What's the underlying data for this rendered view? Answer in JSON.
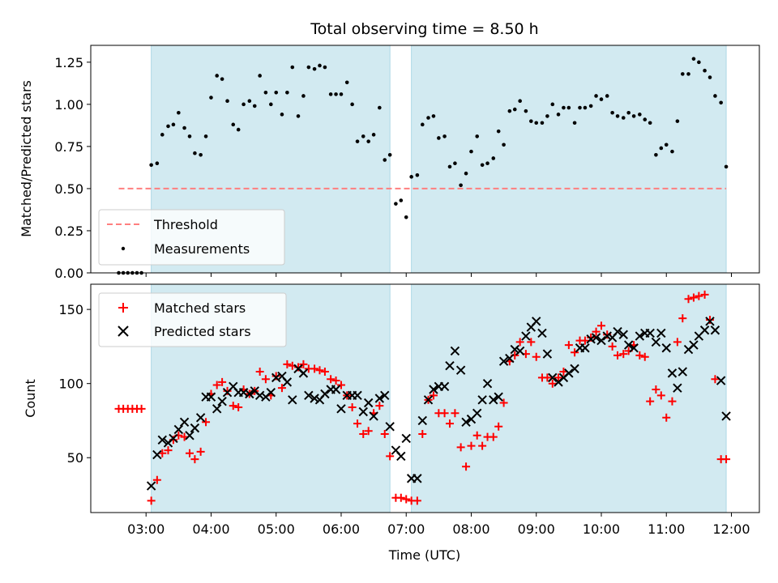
{
  "chart_data": {
    "type": "scatter",
    "title": "Total observing time = 8.50 h",
    "xlabel": "Time (UTC)",
    "x_tick_labels": [
      "03:00",
      "04:00",
      "05:00",
      "06:00",
      "07:00",
      "08:00",
      "09:00",
      "10:00",
      "11:00",
      "12:00"
    ],
    "x_tick_hours": [
      3,
      4,
      5,
      6,
      7,
      8,
      9,
      10,
      11,
      12
    ],
    "xlim_hours": [
      2.15,
      12.43
    ],
    "shaded_intervals_hours": [
      [
        3.08,
        6.75
      ],
      [
        7.08,
        11.92
      ]
    ],
    "colors": {
      "shade": "#add8e6",
      "threshold": "#ff7f7f",
      "matched": "#ff0000",
      "predicted": "#000000",
      "measurements": "#000000"
    },
    "panels": [
      {
        "ylabel": "Matched/Predicted stars",
        "ylim": [
          0,
          1.35
        ],
        "y_ticks": [
          0,
          0.25,
          0.5,
          0.75,
          1.0,
          1.25
        ],
        "y_tick_labels": [
          "0.00",
          "0.25",
          "0.50",
          "0.75",
          "1.00",
          "1.25"
        ],
        "legend_location": "lower-left",
        "threshold": {
          "name": "Threshold",
          "value": 0.5,
          "x_range_hours": [
            2.58,
            11.92
          ]
        },
        "series": [
          {
            "name": "Measurements",
            "marker": "dot",
            "x": [
              2.58,
              2.65,
              2.72,
              2.79,
              2.86,
              2.93,
              3.08,
              3.17,
              3.25,
              3.34,
              3.42,
              3.5,
              3.59,
              3.67,
              3.75,
              3.84,
              3.92,
              4.0,
              4.09,
              4.17,
              4.25,
              4.34,
              4.42,
              4.5,
              4.59,
              4.67,
              4.75,
              4.84,
              4.92,
              5.0,
              5.09,
              5.17,
              5.25,
              5.34,
              5.42,
              5.5,
              5.59,
              5.67,
              5.75,
              5.84,
              5.92,
              6.0,
              6.09,
              6.17,
              6.25,
              6.34,
              6.42,
              6.5,
              6.59,
              6.67,
              6.75,
              6.84,
              6.92,
              7.0,
              7.08,
              7.17,
              7.25,
              7.34,
              7.42,
              7.5,
              7.59,
              7.67,
              7.75,
              7.84,
              7.92,
              8.0,
              8.09,
              8.17,
              8.25,
              8.34,
              8.42,
              8.5,
              8.59,
              8.67,
              8.75,
              8.84,
              8.92,
              9.0,
              9.09,
              9.17,
              9.25,
              9.34,
              9.42,
              9.5,
              9.59,
              9.67,
              9.75,
              9.84,
              9.92,
              10.0,
              10.09,
              10.17,
              10.25,
              10.34,
              10.42,
              10.5,
              10.59,
              10.67,
              10.75,
              10.84,
              10.92,
              11.0,
              11.09,
              11.17,
              11.25,
              11.34,
              11.42,
              11.5,
              11.59,
              11.67,
              11.75,
              11.84,
              11.92
            ],
            "y": [
              0.0,
              0.0,
              0.0,
              0.0,
              0.0,
              0.0,
              0.64,
              0.65,
              0.82,
              0.87,
              0.88,
              0.95,
              0.86,
              0.81,
              0.71,
              0.7,
              0.81,
              1.04,
              1.17,
              1.15,
              1.02,
              0.88,
              0.85,
              1.0,
              1.02,
              0.99,
              1.17,
              1.07,
              1.0,
              1.07,
              0.94,
              1.07,
              1.22,
              0.93,
              1.05,
              1.22,
              1.21,
              1.23,
              1.22,
              1.06,
              1.06,
              1.06,
              1.13,
              1.0,
              0.78,
              0.81,
              0.78,
              0.82,
              0.98,
              0.67,
              0.7,
              0.41,
              0.43,
              0.33,
              0.57,
              0.58,
              0.88,
              0.92,
              0.93,
              0.8,
              0.81,
              0.63,
              0.65,
              0.52,
              0.59,
              0.72,
              0.81,
              0.64,
              0.65,
              0.68,
              0.84,
              0.76,
              0.96,
              0.97,
              1.02,
              0.96,
              0.9,
              0.89,
              0.89,
              0.93,
              1.0,
              0.94,
              0.98,
              0.98,
              0.89,
              0.98,
              0.98,
              0.99,
              1.05,
              1.03,
              1.05,
              0.95,
              0.93,
              0.92,
              0.95,
              0.93,
              0.94,
              0.91,
              0.89,
              0.7,
              0.74,
              0.76,
              0.72,
              0.9,
              1.18,
              1.18,
              1.27,
              1.25,
              1.2,
              1.16,
              1.05,
              1.01,
              0.63
            ]
          }
        ]
      },
      {
        "ylabel": "Count",
        "ylim": [
          13,
          167
        ],
        "y_ticks": [
          50,
          100,
          150
        ],
        "y_tick_labels": [
          "50",
          "100",
          "150"
        ],
        "legend_location": "upper-left",
        "series": [
          {
            "name": "Matched stars",
            "marker": "plus",
            "x": [
              2.58,
              2.65,
              2.72,
              2.79,
              2.86,
              2.93,
              3.08,
              3.17,
              3.25,
              3.34,
              3.42,
              3.5,
              3.59,
              3.67,
              3.75,
              3.84,
              3.92,
              4.0,
              4.09,
              4.17,
              4.25,
              4.34,
              4.42,
              4.5,
              4.59,
              4.67,
              4.75,
              4.84,
              4.92,
              5.0,
              5.09,
              5.17,
              5.25,
              5.34,
              5.42,
              5.5,
              5.59,
              5.67,
              5.75,
              5.84,
              5.92,
              6.0,
              6.09,
              6.17,
              6.25,
              6.34,
              6.42,
              6.5,
              6.59,
              6.67,
              6.75,
              6.84,
              6.92,
              7.0,
              7.08,
              7.17,
              7.25,
              7.34,
              7.42,
              7.5,
              7.59,
              7.67,
              7.75,
              7.84,
              7.92,
              8.0,
              8.09,
              8.17,
              8.25,
              8.34,
              8.42,
              8.5,
              8.59,
              8.67,
              8.75,
              8.84,
              8.92,
              9.0,
              9.09,
              9.17,
              9.25,
              9.34,
              9.42,
              9.5,
              9.59,
              9.67,
              9.75,
              9.84,
              9.92,
              10.0,
              10.09,
              10.17,
              10.25,
              10.34,
              10.42,
              10.5,
              10.59,
              10.67,
              10.75,
              10.84,
              10.92,
              11.0,
              11.09,
              11.17,
              11.25,
              11.34,
              11.42,
              11.5,
              11.59,
              11.67,
              11.75,
              11.84,
              11.92
            ],
            "y": [
              83,
              83,
              83,
              83,
              83,
              83,
              21,
              35,
              53,
              55,
              62,
              65,
              64,
              53,
              49,
              54,
              74,
              93,
              99,
              101,
              95,
              85,
              84,
              96,
              93,
              95,
              108,
              103,
              92,
              105,
              97,
              113,
              112,
              111,
              113,
              110,
              110,
              109,
              108,
              103,
              102,
              99,
              92,
              84,
              73,
              66,
              68,
              80,
              85,
              66,
              51,
              23,
              23,
              22,
              21,
              21,
              66,
              89,
              92,
              80,
              80,
              73,
              80,
              57,
              44,
              58,
              65,
              58,
              64,
              64,
              71,
              87,
              115,
              119,
              128,
              120,
              128,
              118,
              104,
              104,
              100,
              104,
              108,
              126,
              121,
              129,
              129,
              131,
              135,
              139,
              133,
              125,
              119,
              120,
              122,
              126,
              119,
              118,
              88,
              96,
              92,
              77,
              88,
              128,
              144,
              157,
              158,
              159,
              160,
              143,
              103,
              49,
              49
            ]
          },
          {
            "name": "Predicted stars",
            "marker": "x",
            "x": [
              3.08,
              3.17,
              3.25,
              3.34,
              3.42,
              3.5,
              3.59,
              3.67,
              3.75,
              3.84,
              3.92,
              4.0,
              4.09,
              4.17,
              4.25,
              4.34,
              4.42,
              4.5,
              4.59,
              4.67,
              4.75,
              4.84,
              4.92,
              5.0,
              5.09,
              5.17,
              5.25,
              5.34,
              5.42,
              5.5,
              5.59,
              5.67,
              5.75,
              5.84,
              5.92,
              6.0,
              6.09,
              6.17,
              6.25,
              6.34,
              6.42,
              6.5,
              6.59,
              6.67,
              6.75,
              6.84,
              6.92,
              7.0,
              7.08,
              7.17,
              7.25,
              7.34,
              7.42,
              7.5,
              7.59,
              7.67,
              7.75,
              7.84,
              7.92,
              8.0,
              8.09,
              8.17,
              8.25,
              8.34,
              8.42,
              8.5,
              8.59,
              8.67,
              8.75,
              8.84,
              8.92,
              9.0,
              9.09,
              9.17,
              9.25,
              9.34,
              9.42,
              9.5,
              9.59,
              9.67,
              9.75,
              9.84,
              9.92,
              10.0,
              10.09,
              10.17,
              10.25,
              10.34,
              10.42,
              10.5,
              10.59,
              10.67,
              10.75,
              10.84,
              10.92,
              11.0,
              11.09,
              11.17,
              11.25,
              11.34,
              11.42,
              11.5,
              11.59,
              11.67,
              11.75,
              11.84,
              11.92
            ],
            "y": [
              31,
              52,
              62,
              60,
              63,
              69,
              74,
              65,
              70,
              77,
              91,
              91,
              83,
              88,
              94,
              98,
              94,
              94,
              93,
              95,
              92,
              91,
              94,
              104,
              105,
              101,
              89,
              110,
              107,
              92,
              90,
              89,
              93,
              96,
              96,
              83,
              92,
              92,
              92,
              81,
              87,
              78,
              90,
              92,
              71,
              55,
              51,
              63,
              36,
              36,
              75,
              89,
              96,
              98,
              98,
              112,
              122,
              109,
              74,
              76,
              80,
              89,
              100,
              89,
              91,
              115,
              117,
              123,
              122,
              132,
              138,
              142,
              134,
              120,
              104,
              101,
              104,
              107,
              110,
              124,
              124,
              130,
              131,
              129,
              132,
              131,
              135,
              133,
              126,
              124,
              132,
              134,
              134,
              128,
              134,
              124,
              107,
              97,
              108,
              123,
              126,
              132,
              136,
              142,
              136,
              102,
              78
            ]
          }
        ]
      }
    ]
  }
}
